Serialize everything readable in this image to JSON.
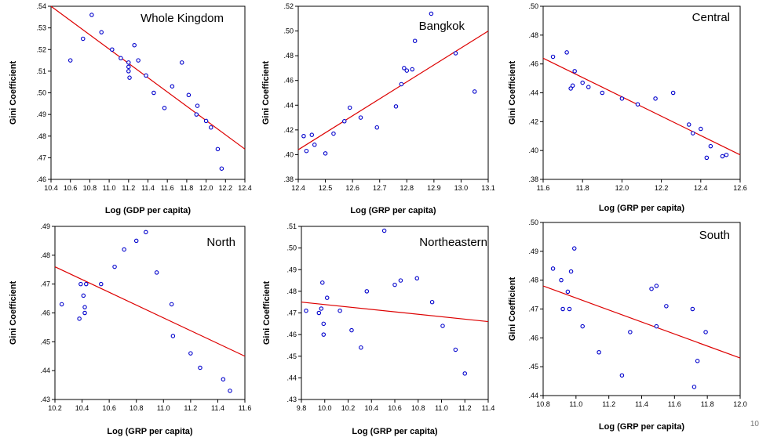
{
  "page_number": "10",
  "chart_data": [
    {
      "type": "scatter",
      "title": "Whole Kingdom",
      "xlabel": "Log (GDP per capita)",
      "ylabel": "Gini Coefficient",
      "xlim": [
        10.4,
        12.4
      ],
      "ylim": [
        0.46,
        0.54
      ],
      "xticks": [
        "10.4",
        "10.6",
        "10.8",
        "11.0",
        "11.2",
        "11.4",
        "11.6",
        "11.8",
        "12.0",
        "12.2",
        "12.4"
      ],
      "yticks": [
        ".46",
        ".47",
        ".48",
        ".49",
        ".50",
        ".51",
        ".52",
        ".53",
        ".54"
      ],
      "point_color": "#0000cc",
      "fit_color": "#dd0000",
      "points": [
        [
          10.6,
          0.515
        ],
        [
          10.73,
          0.525
        ],
        [
          10.82,
          0.536
        ],
        [
          10.92,
          0.528
        ],
        [
          11.03,
          0.52
        ],
        [
          11.12,
          0.516
        ],
        [
          11.2,
          0.514
        ],
        [
          11.2,
          0.512
        ],
        [
          11.2,
          0.51
        ],
        [
          11.21,
          0.507
        ],
        [
          11.26,
          0.522
        ],
        [
          11.3,
          0.515
        ],
        [
          11.38,
          0.508
        ],
        [
          11.46,
          0.5
        ],
        [
          11.57,
          0.493
        ],
        [
          11.65,
          0.503
        ],
        [
          11.75,
          0.514
        ],
        [
          11.82,
          0.499
        ],
        [
          11.9,
          0.49
        ],
        [
          11.91,
          0.494
        ],
        [
          12.0,
          0.487
        ],
        [
          12.05,
          0.484
        ],
        [
          12.12,
          0.474
        ],
        [
          12.16,
          0.465
        ]
      ],
      "fit": [
        [
          10.4,
          0.54
        ],
        [
          12.4,
          0.474
        ]
      ]
    },
    {
      "type": "scatter",
      "title": "Bangkok",
      "xlabel": "Log (GRP per capita)",
      "ylabel": "Gini Coefficient",
      "xlim": [
        12.4,
        13.1
      ],
      "ylim": [
        0.38,
        0.52
      ],
      "xticks": [
        "12.4",
        "12.5",
        "12.6",
        "12.7",
        "12.8",
        "12.9",
        "13.0",
        "13.1"
      ],
      "yticks": [
        ".38",
        ".40",
        ".42",
        ".44",
        ".46",
        ".48",
        ".50",
        ".52"
      ],
      "point_color": "#0000cc",
      "fit_color": "#dd0000",
      "points": [
        [
          12.42,
          0.415
        ],
        [
          12.43,
          0.403
        ],
        [
          12.45,
          0.416
        ],
        [
          12.46,
          0.408
        ],
        [
          12.5,
          0.401
        ],
        [
          12.53,
          0.417
        ],
        [
          12.57,
          0.427
        ],
        [
          12.59,
          0.438
        ],
        [
          12.63,
          0.43
        ],
        [
          12.69,
          0.422
        ],
        [
          12.76,
          0.439
        ],
        [
          12.78,
          0.457
        ],
        [
          12.79,
          0.47
        ],
        [
          12.8,
          0.468
        ],
        [
          12.82,
          0.469
        ],
        [
          12.83,
          0.492
        ],
        [
          12.89,
          0.514
        ],
        [
          12.98,
          0.482
        ],
        [
          13.05,
          0.451
        ]
      ],
      "fit": [
        [
          12.4,
          0.404
        ],
        [
          13.1,
          0.5
        ]
      ]
    },
    {
      "type": "scatter",
      "title": "Central",
      "xlabel": "Log (GRP per capita)",
      "ylabel": "Gini Coefficient",
      "xlim": [
        11.6,
        12.6
      ],
      "ylim": [
        0.38,
        0.5
      ],
      "xticks": [
        "11.6",
        "11.8",
        "12.0",
        "12.2",
        "12.4",
        "12.6"
      ],
      "yticks": [
        ".38",
        ".40",
        ".42",
        ".44",
        ".46",
        ".48",
        ".50"
      ],
      "point_color": "#0000cc",
      "fit_color": "#dd0000",
      "points": [
        [
          11.65,
          0.465
        ],
        [
          11.72,
          0.468
        ],
        [
          11.74,
          0.443
        ],
        [
          11.75,
          0.445
        ],
        [
          11.76,
          0.455
        ],
        [
          11.8,
          0.447
        ],
        [
          11.83,
          0.444
        ],
        [
          11.9,
          0.44
        ],
        [
          12.0,
          0.436
        ],
        [
          12.08,
          0.432
        ],
        [
          12.17,
          0.436
        ],
        [
          12.26,
          0.44
        ],
        [
          12.34,
          0.418
        ],
        [
          12.36,
          0.412
        ],
        [
          12.4,
          0.415
        ],
        [
          12.43,
          0.395
        ],
        [
          12.45,
          0.403
        ],
        [
          12.51,
          0.396
        ],
        [
          12.53,
          0.397
        ]
      ],
      "fit": [
        [
          11.6,
          0.464
        ],
        [
          12.6,
          0.397
        ]
      ]
    },
    {
      "type": "scatter",
      "title": "North",
      "xlabel": "Log (GRP per capita)",
      "ylabel": "Gini Coefficient",
      "xlim": [
        10.2,
        11.6
      ],
      "ylim": [
        0.43,
        0.49
      ],
      "xticks": [
        "10.2",
        "10.4",
        "10.6",
        "10.8",
        "11.0",
        "11.2",
        "11.4",
        "11.6"
      ],
      "yticks": [
        ".43",
        ".44",
        ".45",
        ".46",
        ".47",
        ".48",
        ".49"
      ],
      "point_color": "#0000cc",
      "fit_color": "#dd0000",
      "points": [
        [
          10.25,
          0.463
        ],
        [
          10.38,
          0.458
        ],
        [
          10.39,
          0.47
        ],
        [
          10.41,
          0.466
        ],
        [
          10.42,
          0.462
        ],
        [
          10.42,
          0.46
        ],
        [
          10.43,
          0.47
        ],
        [
          10.54,
          0.47
        ],
        [
          10.64,
          0.476
        ],
        [
          10.71,
          0.482
        ],
        [
          10.8,
          0.485
        ],
        [
          10.87,
          0.488
        ],
        [
          10.95,
          0.474
        ],
        [
          11.06,
          0.463
        ],
        [
          11.07,
          0.452
        ],
        [
          11.2,
          0.446
        ],
        [
          11.27,
          0.441
        ],
        [
          11.44,
          0.437
        ],
        [
          11.49,
          0.433
        ]
      ],
      "fit": [
        [
          10.2,
          0.476
        ],
        [
          11.6,
          0.445
        ]
      ]
    },
    {
      "type": "scatter",
      "title": "Northeastern",
      "xlabel": "Log (GRP per capita)",
      "ylabel": "Gini Coefficient",
      "xlim": [
        9.8,
        11.4
      ],
      "ylim": [
        0.43,
        0.51
      ],
      "xticks": [
        "9.8",
        "10.0",
        "10.2",
        "10.4",
        "10.6",
        "10.8",
        "11.0",
        "11.2",
        "11.4"
      ],
      "yticks": [
        ".43",
        ".44",
        ".45",
        ".46",
        ".47",
        ".48",
        ".49",
        ".50",
        ".51"
      ],
      "point_color": "#0000cc",
      "fit_color": "#dd0000",
      "points": [
        [
          9.84,
          0.471
        ],
        [
          9.95,
          0.47
        ],
        [
          9.97,
          0.472
        ],
        [
          9.98,
          0.484
        ],
        [
          9.99,
          0.465
        ],
        [
          9.99,
          0.46
        ],
        [
          10.02,
          0.477
        ],
        [
          10.13,
          0.471
        ],
        [
          10.23,
          0.462
        ],
        [
          10.31,
          0.454
        ],
        [
          10.36,
          0.48
        ],
        [
          10.51,
          0.508
        ],
        [
          10.6,
          0.483
        ],
        [
          10.65,
          0.485
        ],
        [
          10.79,
          0.486
        ],
        [
          10.92,
          0.475
        ],
        [
          11.01,
          0.464
        ],
        [
          11.12,
          0.453
        ],
        [
          11.2,
          0.442
        ]
      ],
      "fit": [
        [
          9.8,
          0.475
        ],
        [
          11.4,
          0.466
        ]
      ]
    },
    {
      "type": "scatter",
      "title": "South",
      "xlabel": "Log (GRP per capita)",
      "ylabel": "Gini Coefficient",
      "xlim": [
        10.8,
        12.0
      ],
      "ylim": [
        0.44,
        0.5
      ],
      "xticks": [
        "10.8",
        "11.0",
        "11.2",
        "11.4",
        "11.6",
        "11.8",
        "12.0"
      ],
      "yticks": [
        ".44",
        ".45",
        ".46",
        ".47",
        ".48",
        ".49",
        ".50"
      ],
      "point_color": "#0000cc",
      "fit_color": "#dd0000",
      "points": [
        [
          10.86,
          0.484
        ],
        [
          10.91,
          0.48
        ],
        [
          10.92,
          0.47
        ],
        [
          10.95,
          0.476
        ],
        [
          10.96,
          0.47
        ],
        [
          10.97,
          0.483
        ],
        [
          10.99,
          0.491
        ],
        [
          11.04,
          0.464
        ],
        [
          11.14,
          0.455
        ],
        [
          11.28,
          0.447
        ],
        [
          11.33,
          0.462
        ],
        [
          11.46,
          0.477
        ],
        [
          11.49,
          0.478
        ],
        [
          11.49,
          0.464
        ],
        [
          11.55,
          0.471
        ],
        [
          11.71,
          0.47
        ],
        [
          11.72,
          0.443
        ],
        [
          11.74,
          0.452
        ],
        [
          11.79,
          0.462
        ]
      ],
      "fit": [
        [
          10.8,
          0.478
        ],
        [
          12.0,
          0.453
        ]
      ]
    }
  ]
}
